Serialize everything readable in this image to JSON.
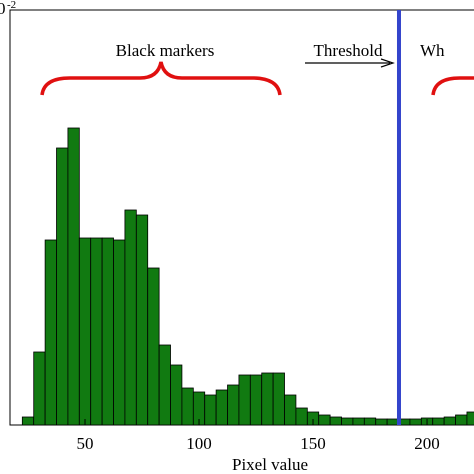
{
  "chart_data": {
    "type": "histogram",
    "offset_text": "0",
    "offset_exponent": "-2",
    "xlabel": "Pixel value",
    "color": "#117a11",
    "bins": [
      22.5,
      27.5,
      32.5,
      37.5,
      42.5,
      47.5,
      52.5,
      57.5,
      62.5,
      67.5,
      72.5,
      77.5,
      82.5,
      87.5,
      92.5,
      97.5,
      102.5,
      107.5,
      112.5,
      117.5,
      122.5,
      127.5,
      132.5,
      137.5,
      142.5,
      147.5,
      152.5,
      157.5,
      162.5,
      167.5,
      172.5,
      177.5,
      182.5,
      187.5,
      192.5,
      197.5,
      202.5,
      207.5,
      212.5,
      217.5,
      222.5
    ],
    "values": [
      0.08,
      0.73,
      1.85,
      2.77,
      2.97,
      1.87,
      1.87,
      1.87,
      1.85,
      2.15,
      2.1,
      1.57,
      0.8,
      0.6,
      0.37,
      0.33,
      0.3,
      0.35,
      0.4,
      0.5,
      0.5,
      0.52,
      0.52,
      0.3,
      0.17,
      0.13,
      0.1,
      0.08,
      0.07,
      0.07,
      0.07,
      0.06,
      0.06,
      0.06,
      0.06,
      0.07,
      0.07,
      0.08,
      0.1,
      0.13
    ],
    "xlim": [
      17.1,
      220.6
    ],
    "ylim": [
      0,
      4.15
    ],
    "xticks": [
      50,
      100,
      150,
      200
    ],
    "threshold": 187.7,
    "threshold_color": "#3344cc",
    "annotations": {
      "black": "Black markers",
      "threshold": "Threshold",
      "white": "Wh"
    }
  }
}
